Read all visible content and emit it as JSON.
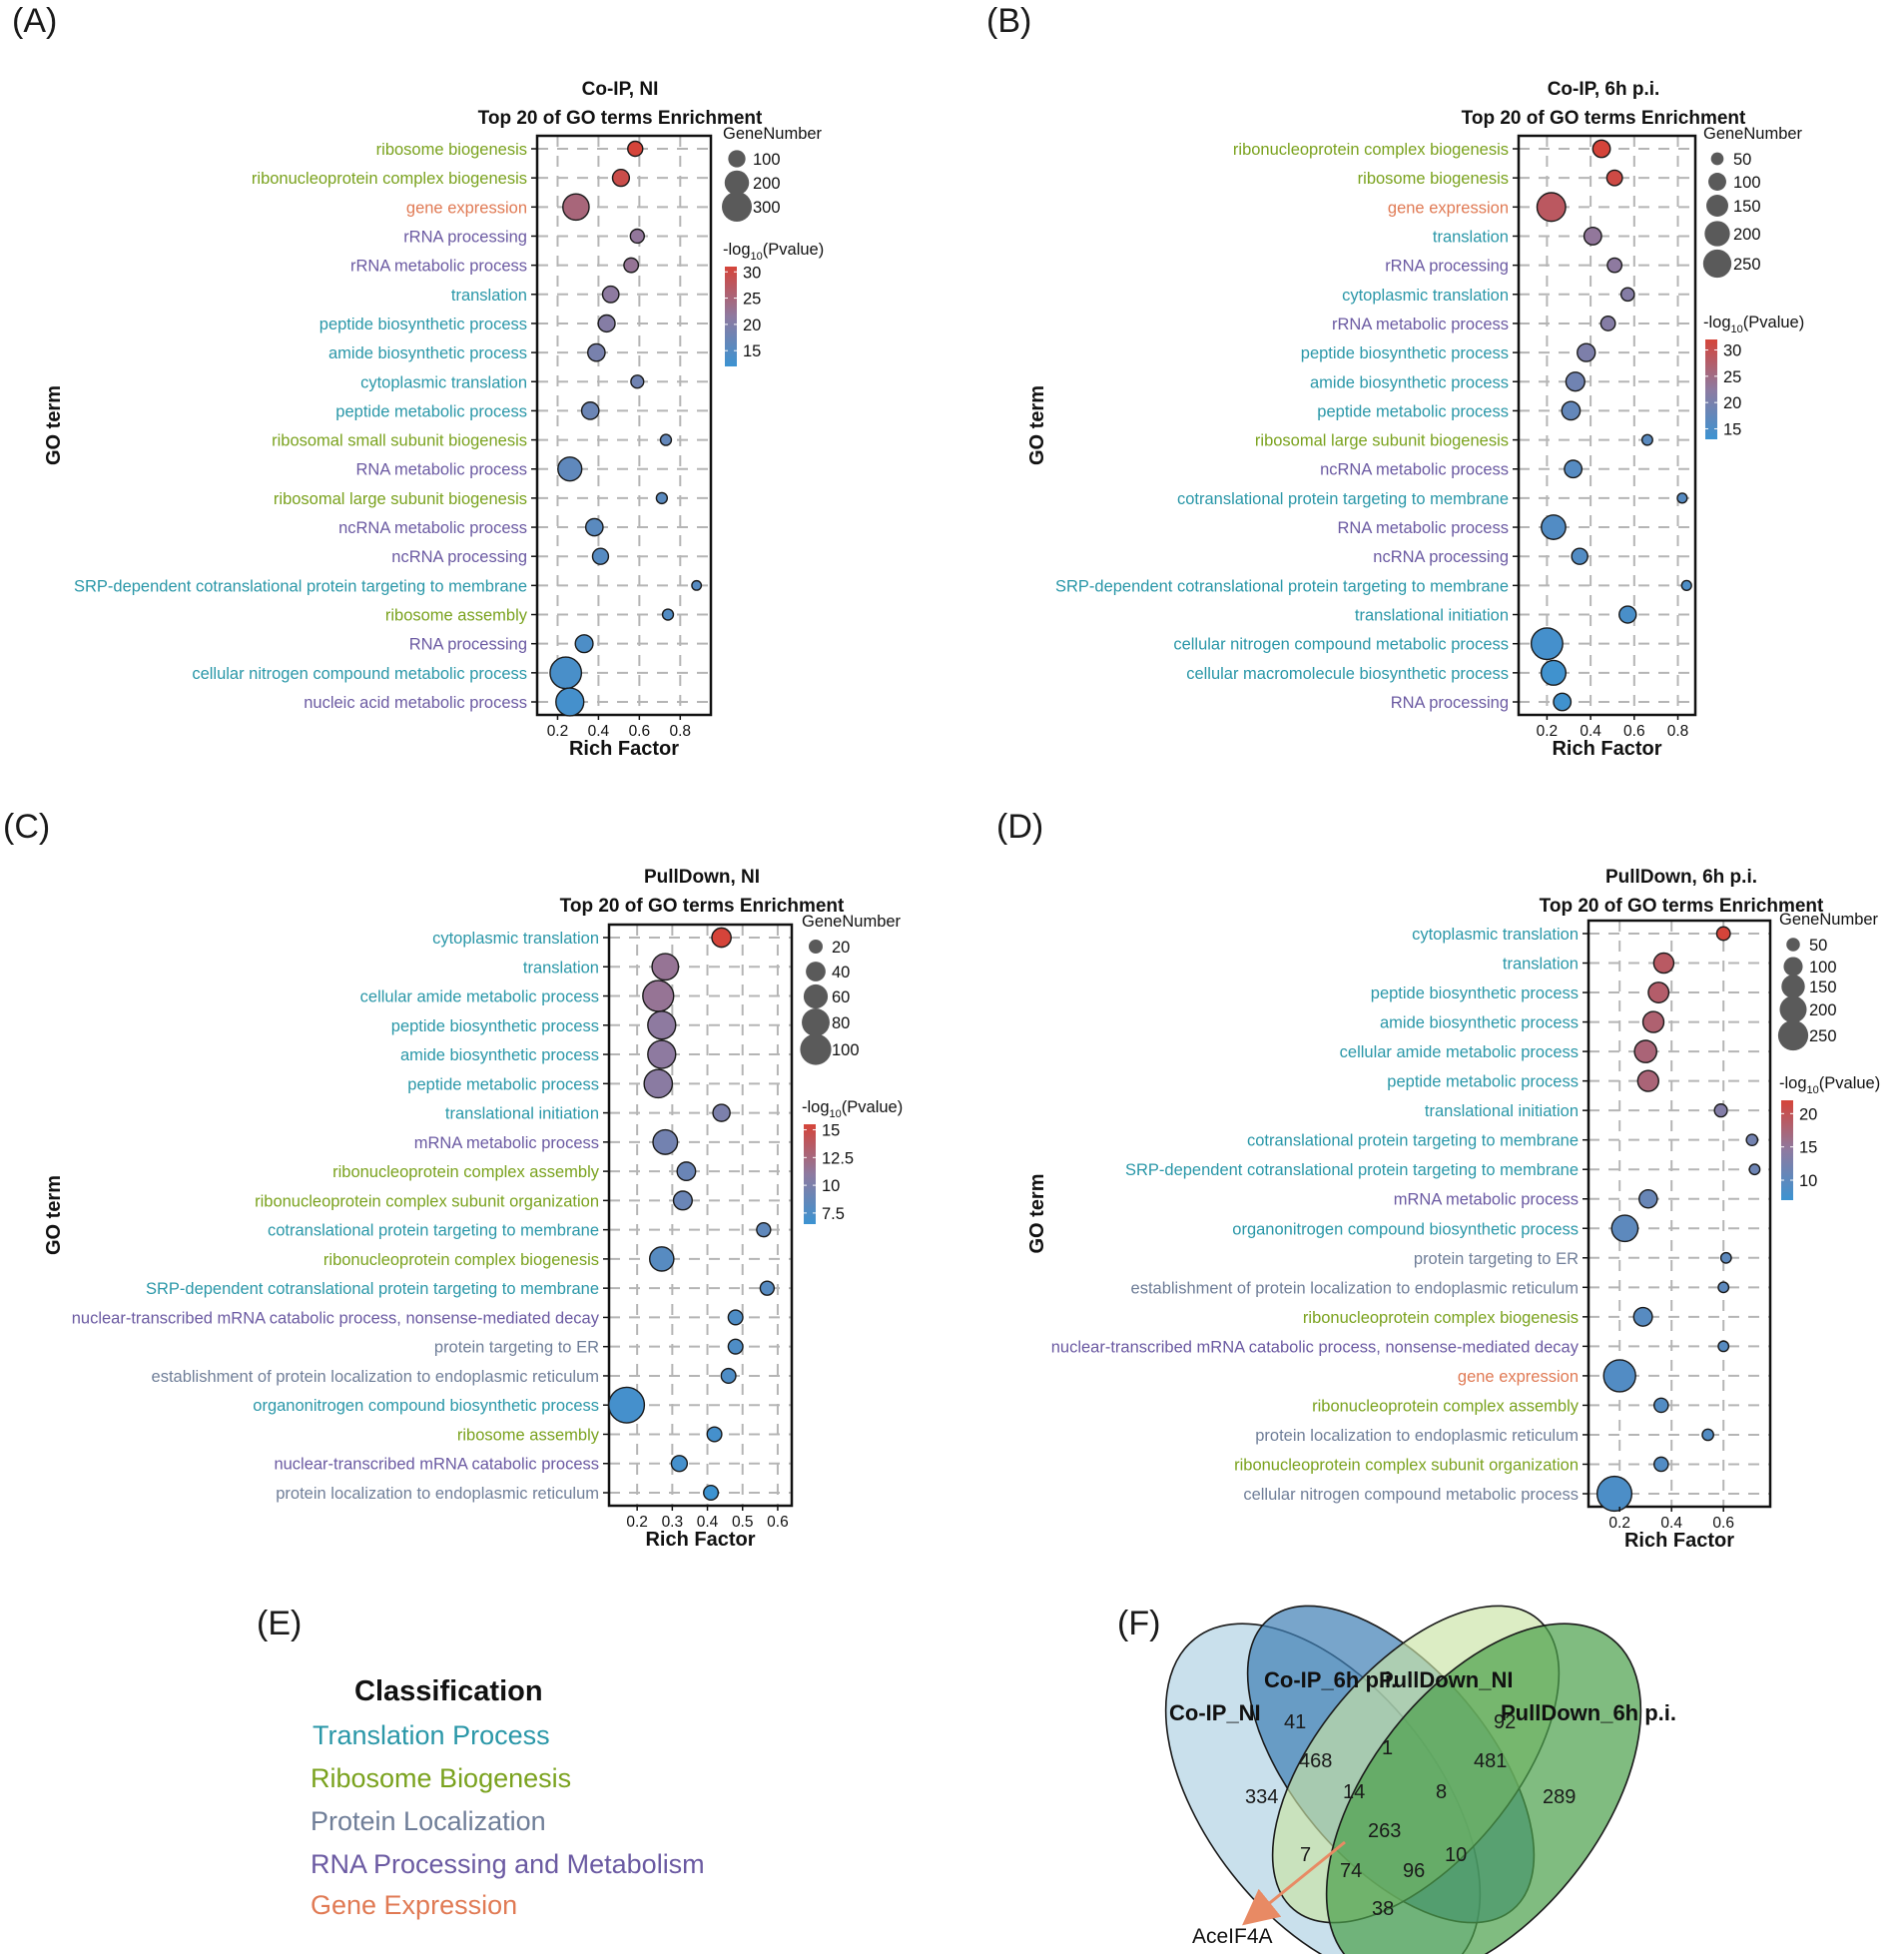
{
  "figure": {
    "panel_labels": [
      "(A)",
      "(B)",
      "(C)",
      "(D)",
      "(E)",
      "(F)"
    ],
    "y_axis_label": "GO term",
    "x_axis_label": "Rich Factor",
    "size_legend_title": "GeneNumber",
    "color_legend_title_prefix": "-log",
    "color_legend_title_sub": "10",
    "color_legend_title_suffix": "(Pvalue)"
  },
  "colors": {
    "translation": "#2a97a8",
    "ribosome": "#7aa21e",
    "localization": "#6f7e98",
    "rna": "#6b5aa2",
    "gene_expression": "#e07a54",
    "cbar_high": "#d5443a",
    "cbar_mid": "#8e7aa0",
    "cbar_low": "#3c93d1"
  },
  "classification": {
    "title": "Classification",
    "items": [
      {
        "label": "Translation Process",
        "cat": "translation"
      },
      {
        "label": "Ribosome Biogenesis",
        "cat": "ribosome"
      },
      {
        "label": "Protein Localization",
        "cat": "localization"
      },
      {
        "label": "RNA Processing and Metabolism",
        "cat": "rna"
      },
      {
        "label": "Gene Expression",
        "cat": "gene_expression"
      }
    ]
  },
  "chart_data": [
    {
      "type": "scatter",
      "panel": "(A)",
      "title": [
        "Co-IP, NI",
        "Top 20 of GO terms Enrichment"
      ],
      "xlabel": "Rich Factor",
      "ylabel": "GO term",
      "xlim": [
        0.1,
        0.95
      ],
      "xticks": [
        0.2,
        0.4,
        0.6,
        0.8
      ],
      "size_legend": [
        100,
        200,
        300
      ],
      "size_max": 300,
      "color_legend": {
        "ticks": [
          15,
          20,
          25,
          30
        ],
        "range": [
          12,
          31
        ]
      },
      "terms": [
        {
          "term": "ribosome biogenesis",
          "cat": "ribosome",
          "x": 0.58,
          "genes": 75,
          "logp": 31
        },
        {
          "term": "ribonucleoprotein complex biogenesis",
          "cat": "ribosome",
          "x": 0.51,
          "genes": 95,
          "logp": 29.5
        },
        {
          "term": "gene expression",
          "cat": "gene_expression",
          "x": 0.29,
          "genes": 230,
          "logp": 25
        },
        {
          "term": "rRNA processing",
          "cat": "rna",
          "x": 0.59,
          "genes": 65,
          "logp": 22
        },
        {
          "term": "rRNA metabolic process",
          "cat": "rna",
          "x": 0.56,
          "genes": 70,
          "logp": 22.5
        },
        {
          "term": "translation",
          "cat": "translation",
          "x": 0.46,
          "genes": 90,
          "logp": 21.5
        },
        {
          "term": "peptide biosynthetic process",
          "cat": "translation",
          "x": 0.44,
          "genes": 95,
          "logp": 20.5
        },
        {
          "term": "amide biosynthetic process",
          "cat": "translation",
          "x": 0.39,
          "genes": 100,
          "logp": 19
        },
        {
          "term": "cytoplasmic translation",
          "cat": "translation",
          "x": 0.59,
          "genes": 55,
          "logp": 18
        },
        {
          "term": "peptide metabolic process",
          "cat": "translation",
          "x": 0.36,
          "genes": 100,
          "logp": 17.5
        },
        {
          "term": "ribosomal small subunit biogenesis",
          "cat": "ribosome",
          "x": 0.73,
          "genes": 40,
          "logp": 16.5
        },
        {
          "term": "RNA metabolic process",
          "cat": "rna",
          "x": 0.26,
          "genes": 190,
          "logp": 16
        },
        {
          "term": "ribosomal large subunit biogenesis",
          "cat": "ribosome",
          "x": 0.71,
          "genes": 40,
          "logp": 15.5
        },
        {
          "term": "ncRNA metabolic process",
          "cat": "rna",
          "x": 0.38,
          "genes": 100,
          "logp": 15.5
        },
        {
          "term": "ncRNA processing",
          "cat": "rna",
          "x": 0.41,
          "genes": 85,
          "logp": 15
        },
        {
          "term": "SRP-dependent cotranslational protein targeting to membrane",
          "cat": "translation",
          "x": 0.88,
          "genes": 30,
          "logp": 15
        },
        {
          "term": "ribosome assembly",
          "cat": "ribosome",
          "x": 0.74,
          "genes": 40,
          "logp": 14.5
        },
        {
          "term": "RNA processing",
          "cat": "rna",
          "x": 0.33,
          "genes": 105,
          "logp": 14
        },
        {
          "term": "cellular nitrogen compound metabolic process",
          "cat": "translation",
          "x": 0.24,
          "genes": 330,
          "logp": 13.5
        },
        {
          "term": "nucleic acid metabolic process",
          "cat": "rna",
          "x": 0.26,
          "genes": 260,
          "logp": 13
        }
      ]
    },
    {
      "type": "scatter",
      "panel": "(B)",
      "title": [
        "Co-IP, 6h p.i.",
        "Top 20 of GO terms Enrichment"
      ],
      "xlabel": "Rich Factor",
      "ylabel": "GO term",
      "xlim": [
        0.07,
        0.88
      ],
      "xticks": [
        0.2,
        0.4,
        0.6,
        0.8
      ],
      "size_legend": [
        50,
        100,
        150,
        200,
        250
      ],
      "size_max": 280,
      "color_legend": {
        "ticks": [
          15,
          20,
          25,
          30
        ],
        "range": [
          13,
          32
        ]
      },
      "terms": [
        {
          "term": "ribonucleoprotein complex biogenesis",
          "cat": "ribosome",
          "x": 0.45,
          "genes": 95,
          "logp": 32
        },
        {
          "term": "ribosome biogenesis",
          "cat": "ribosome",
          "x": 0.51,
          "genes": 75,
          "logp": 31
        },
        {
          "term": "gene expression",
          "cat": "gene_expression",
          "x": 0.22,
          "genes": 255,
          "logp": 28.5
        },
        {
          "term": "translation",
          "cat": "translation",
          "x": 0.41,
          "genes": 95,
          "logp": 23
        },
        {
          "term": "rRNA processing",
          "cat": "rna",
          "x": 0.51,
          "genes": 65,
          "logp": 22.5
        },
        {
          "term": "cytoplasmic translation",
          "cat": "translation",
          "x": 0.57,
          "genes": 55,
          "logp": 21.5
        },
        {
          "term": "rRNA metabolic process",
          "cat": "rna",
          "x": 0.48,
          "genes": 65,
          "logp": 21.5
        },
        {
          "term": "peptide biosynthetic process",
          "cat": "translation",
          "x": 0.38,
          "genes": 100,
          "logp": 20.5
        },
        {
          "term": "amide biosynthetic process",
          "cat": "translation",
          "x": 0.33,
          "genes": 110,
          "logp": 19
        },
        {
          "term": "peptide metabolic process",
          "cat": "translation",
          "x": 0.31,
          "genes": 105,
          "logp": 17.5
        },
        {
          "term": "ribosomal large subunit biogenesis",
          "cat": "ribosome",
          "x": 0.66,
          "genes": 35,
          "logp": 16.5
        },
        {
          "term": "ncRNA metabolic process",
          "cat": "rna",
          "x": 0.32,
          "genes": 95,
          "logp": 16
        },
        {
          "term": "cotranslational protein targeting to membrane",
          "cat": "translation",
          "x": 0.82,
          "genes": 30,
          "logp": 16
        },
        {
          "term": "RNA metabolic process",
          "cat": "rna",
          "x": 0.23,
          "genes": 185,
          "logp": 15.5
        },
        {
          "term": "ncRNA processing",
          "cat": "rna",
          "x": 0.35,
          "genes": 80,
          "logp": 15.5
        },
        {
          "term": "SRP-dependent cotranslational protein targeting to membrane",
          "cat": "translation",
          "x": 0.84,
          "genes": 30,
          "logp": 15
        },
        {
          "term": "translational initiation",
          "cat": "translation",
          "x": 0.57,
          "genes": 90,
          "logp": 14.5
        },
        {
          "term": "cellular nitrogen compound metabolic process",
          "cat": "translation",
          "x": 0.2,
          "genes": 310,
          "logp": 14
        },
        {
          "term": "cellular macromolecule biosynthetic process",
          "cat": "translation",
          "x": 0.23,
          "genes": 190,
          "logp": 13.5
        },
        {
          "term": "RNA processing",
          "cat": "rna",
          "x": 0.27,
          "genes": 95,
          "logp": 13.5
        }
      ]
    },
    {
      "type": "scatter",
      "panel": "(C)",
      "title": [
        "PullDown, NI",
        "Top 20 of GO terms Enrichment"
      ],
      "xlabel": "Rich Factor",
      "ylabel": "GO term",
      "xlim": [
        0.12,
        0.64
      ],
      "xticks": [
        0.2,
        0.3,
        0.4,
        0.5,
        0.6
      ],
      "size_legend": [
        20,
        40,
        60,
        80,
        100
      ],
      "size_max": 105,
      "color_legend": {
        "ticks": [
          7.5,
          10,
          12.5,
          15
        ],
        "range": [
          6.5,
          15.5
        ]
      },
      "terms": [
        {
          "term": "cytoplasmic translation",
          "cat": "translation",
          "x": 0.44,
          "genes": 38,
          "logp": 15.5
        },
        {
          "term": "translation",
          "cat": "translation",
          "x": 0.28,
          "genes": 72,
          "logp": 11.5
        },
        {
          "term": "cellular amide metabolic process",
          "cat": "translation",
          "x": 0.26,
          "genes": 98,
          "logp": 11.5
        },
        {
          "term": "peptide biosynthetic process",
          "cat": "translation",
          "x": 0.27,
          "genes": 80,
          "logp": 11
        },
        {
          "term": "amide biosynthetic process",
          "cat": "translation",
          "x": 0.27,
          "genes": 80,
          "logp": 11
        },
        {
          "term": "peptide metabolic process",
          "cat": "translation",
          "x": 0.26,
          "genes": 82,
          "logp": 10.8
        },
        {
          "term": "translational initiation",
          "cat": "translation",
          "x": 0.44,
          "genes": 30,
          "logp": 10
        },
        {
          "term": "mRNA metabolic process",
          "cat": "rna",
          "x": 0.28,
          "genes": 62,
          "logp": 9.5
        },
        {
          "term": "ribonucleoprotein complex assembly",
          "cat": "ribosome",
          "x": 0.34,
          "genes": 35,
          "logp": 9
        },
        {
          "term": "ribonucleoprotein complex subunit organization",
          "cat": "ribosome",
          "x": 0.33,
          "genes": 36,
          "logp": 9
        },
        {
          "term": "cotranslational protein targeting to membrane",
          "cat": "translation",
          "x": 0.56,
          "genes": 20,
          "logp": 8.5
        },
        {
          "term": "ribonucleoprotein complex biogenesis",
          "cat": "ribosome",
          "x": 0.27,
          "genes": 60,
          "logp": 8
        },
        {
          "term": "SRP-dependent cotranslational protein targeting to membrane",
          "cat": "translation",
          "x": 0.57,
          "genes": 20,
          "logp": 8
        },
        {
          "term": "nuclear-transcribed mRNA catabolic process, nonsense-mediated decay",
          "cat": "rna",
          "x": 0.48,
          "genes": 22,
          "logp": 7.5
        },
        {
          "term": "protein targeting to ER",
          "cat": "localization",
          "x": 0.48,
          "genes": 22,
          "logp": 7.5
        },
        {
          "term": "establishment of protein localization to endoplasmic reticulum",
          "cat": "localization",
          "x": 0.46,
          "genes": 22,
          "logp": 7.5
        },
        {
          "term": "organonitrogen compound biosynthetic process",
          "cat": "translation",
          "x": 0.17,
          "genes": 130,
          "logp": 7
        },
        {
          "term": "ribosome assembly",
          "cat": "ribosome",
          "x": 0.42,
          "genes": 22,
          "logp": 7
        },
        {
          "term": "nuclear-transcribed mRNA catabolic process",
          "cat": "rna",
          "x": 0.32,
          "genes": 26,
          "logp": 7
        },
        {
          "term": "protein localization to endoplasmic reticulum",
          "cat": "localization",
          "x": 0.41,
          "genes": 22,
          "logp": 6.5
        }
      ]
    },
    {
      "type": "scatter",
      "panel": "(D)",
      "title": [
        "PullDown, 6h p.i.",
        "Top 20 of GO terms Enrichment"
      ],
      "xlabel": "Rich Factor",
      "ylabel": "GO term",
      "xlim": [
        0.08,
        0.78
      ],
      "xticks": [
        0.2,
        0.4,
        0.6
      ],
      "size_legend": [
        50,
        100,
        150,
        200,
        250
      ],
      "size_max": 280,
      "color_legend": {
        "ticks": [
          10,
          15,
          20
        ],
        "range": [
          7,
          22
        ]
      },
      "terms": [
        {
          "term": "cytoplasmic translation",
          "cat": "translation",
          "x": 0.6,
          "genes": 50,
          "logp": 22
        },
        {
          "term": "translation",
          "cat": "translation",
          "x": 0.37,
          "genes": 110,
          "logp": 19
        },
        {
          "term": "peptide biosynthetic process",
          "cat": "translation",
          "x": 0.35,
          "genes": 115,
          "logp": 18.5
        },
        {
          "term": "amide biosynthetic process",
          "cat": "translation",
          "x": 0.33,
          "genes": 120,
          "logp": 18
        },
        {
          "term": "cellular amide metabolic process",
          "cat": "translation",
          "x": 0.3,
          "genes": 135,
          "logp": 17.5
        },
        {
          "term": "peptide metabolic process",
          "cat": "translation",
          "x": 0.31,
          "genes": 120,
          "logp": 17.5
        },
        {
          "term": "translational initiation",
          "cat": "translation",
          "x": 0.59,
          "genes": 45,
          "logp": 13.5
        },
        {
          "term": "cotranslational protein targeting to membrane",
          "cat": "translation",
          "x": 0.71,
          "genes": 35,
          "logp": 12
        },
        {
          "term": "SRP-dependent cotranslational protein targeting to membrane",
          "cat": "translation",
          "x": 0.72,
          "genes": 30,
          "logp": 11.5
        },
        {
          "term": "mRNA metabolic process",
          "cat": "rna",
          "x": 0.31,
          "genes": 90,
          "logp": 11
        },
        {
          "term": "organonitrogen compound biosynthetic process",
          "cat": "translation",
          "x": 0.22,
          "genes": 190,
          "logp": 10
        },
        {
          "term": "protein targeting to ER",
          "cat": "localization",
          "x": 0.61,
          "genes": 30,
          "logp": 10
        },
        {
          "term": "establishment of protein localization to endoplasmic reticulum",
          "cat": "localization",
          "x": 0.6,
          "genes": 30,
          "logp": 10
        },
        {
          "term": "ribonucleoprotein complex biogenesis",
          "cat": "ribosome",
          "x": 0.29,
          "genes": 95,
          "logp": 9.5
        },
        {
          "term": "nuclear-transcribed mRNA catabolic process, nonsense-mediated decay",
          "cat": "rna",
          "x": 0.6,
          "genes": 30,
          "logp": 9.5
        },
        {
          "term": "gene expression",
          "cat": "gene_expression",
          "x": 0.2,
          "genes": 280,
          "logp": 9
        },
        {
          "term": "ribonucleoprotein complex assembly",
          "cat": "ribosome",
          "x": 0.36,
          "genes": 55,
          "logp": 9
        },
        {
          "term": "protein localization to endoplasmic reticulum",
          "cat": "localization",
          "x": 0.54,
          "genes": 35,
          "logp": 9
        },
        {
          "term": "ribonucleoprotein complex subunit organization",
          "cat": "ribosome",
          "x": 0.36,
          "genes": 55,
          "logp": 9
        },
        {
          "term": "cellular nitrogen compound metabolic process",
          "cat": "localization",
          "x": 0.18,
          "genes": 330,
          "logp": 8.5
        }
      ]
    },
    {
      "type": "venn",
      "panel": "(F)",
      "sets": [
        "Co-IP_NI",
        "Co-IP_6h p.i.",
        "PullDown_NI",
        "PullDown_6h p.i."
      ],
      "set_colors": [
        "#b7d5e6",
        "#3f7fb5",
        "#c9e3a5",
        "#4aa04a"
      ],
      "regions": [
        {
          "sets": [
            "Co-IP_NI"
          ],
          "value": 334
        },
        {
          "sets": [
            "Co-IP_6h p.i."
          ],
          "value": 41
        },
        {
          "sets": [
            "PullDown_NI"
          ],
          "value": 92
        },
        {
          "sets": [
            "PullDown_6h p.i."
          ],
          "value": 289
        },
        {
          "sets": [
            "Co-IP_NI",
            "Co-IP_6h p.i."
          ],
          "value": 468
        },
        {
          "sets": [
            "Co-IP_6h p.i.",
            "PullDown_NI"
          ],
          "value": 1
        },
        {
          "sets": [
            "PullDown_NI",
            "PullDown_6h p.i."
          ],
          "value": 481
        },
        {
          "sets": [
            "Co-IP_NI",
            "Co-IP_6h p.i.",
            "PullDown_NI"
          ],
          "value": 14
        },
        {
          "sets": [
            "Co-IP_6h p.i.",
            "PullDown_NI",
            "PullDown_6h p.i."
          ],
          "value": 8
        },
        {
          "sets": [
            "Co-IP_NI",
            "Co-IP_6h p.i.",
            "PullDown_NI",
            "PullDown_6h p.i."
          ],
          "value": 263
        },
        {
          "sets": [
            "Co-IP_NI",
            "PullDown_NI"
          ],
          "value": 7
        },
        {
          "sets": [
            "Co-IP_6h p.i.",
            "PullDown_6h p.i."
          ],
          "value": 10
        },
        {
          "sets": [
            "Co-IP_NI",
            "PullDown_NI",
            "PullDown_6h p.i."
          ],
          "value": 74
        },
        {
          "sets": [
            "Co-IP_NI",
            "Co-IP_6h p.i.",
            "PullDown_6h p.i."
          ],
          "value": 96
        },
        {
          "sets": [
            "Co-IP_NI",
            "PullDown_6h p.i."
          ],
          "value": 38
        }
      ],
      "annotation": {
        "label": "AceIF4A",
        "points_to": "all four sets"
      }
    }
  ]
}
